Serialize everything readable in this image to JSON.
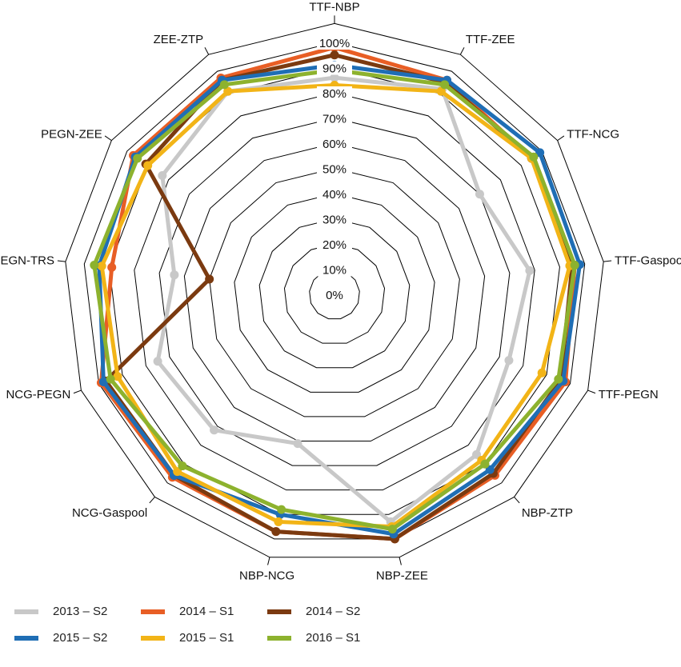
{
  "chart_data": {
    "type": "radar",
    "r_ticks": [
      "0%",
      "10%",
      "20%",
      "30%",
      "40%",
      "50%",
      "60%",
      "70%",
      "80%",
      "90%",
      "100%"
    ],
    "axes": [
      "TTF-NBP",
      "TTF-ZEE",
      "TTF-NCG",
      "TTF-Gaspool",
      "TTF-PEGN",
      "NBP-ZTP",
      "NBP-ZEE",
      "NBP-NCG",
      "NCG-Gaspool",
      "NCG-PEGN",
      "PEGN-TRS",
      "PEGN-ZEE",
      "ZEE-ZTP"
    ],
    "rmax": 1.0,
    "series": [
      {
        "name": "2013 – S2",
        "color": "#c8c8c8",
        "values": [
          0.86,
          0.92,
          0.7,
          0.78,
          0.74,
          0.85,
          0.93,
          0.61,
          0.72,
          0.75,
          0.64,
          0.83,
          0.91
        ]
      },
      {
        "name": "2014 – S1",
        "color": "#e85e25",
        "values": [
          0.98,
          0.96,
          0.95,
          0.96,
          0.98,
          0.96,
          1.0,
          0.97,
          0.97,
          0.99,
          0.89,
          0.97,
          0.97
        ]
      },
      {
        "name": "2014 – S2",
        "color": "#7b3a10",
        "values": [
          0.95,
          0.95,
          0.95,
          0.95,
          0.96,
          0.95,
          1.0,
          0.97,
          0.96,
          0.97,
          0.5,
          0.91,
          0.96
        ]
      },
      {
        "name": "2015 – S2",
        "color": "#1f6eb5",
        "values": [
          0.91,
          0.96,
          0.99,
          0.98,
          0.97,
          0.93,
          0.98,
          0.9,
          0.96,
          0.98,
          0.94,
          0.96,
          0.96
        ]
      },
      {
        "name": "2015 – S1",
        "color": "#f2b417",
        "values": [
          0.83,
          0.91,
          0.95,
          0.94,
          0.88,
          0.88,
          0.95,
          0.93,
          0.94,
          0.92,
          0.93,
          0.9,
          0.91
        ]
      },
      {
        "name": "2016 – S1",
        "color": "#8db22e",
        "values": [
          0.89,
          0.94,
          0.96,
          0.96,
          0.95,
          0.9,
          0.96,
          0.88,
          0.91,
          0.95,
          0.96,
          0.95,
          0.94
        ]
      }
    ],
    "legend_position": "bottom",
    "grid": true
  }
}
